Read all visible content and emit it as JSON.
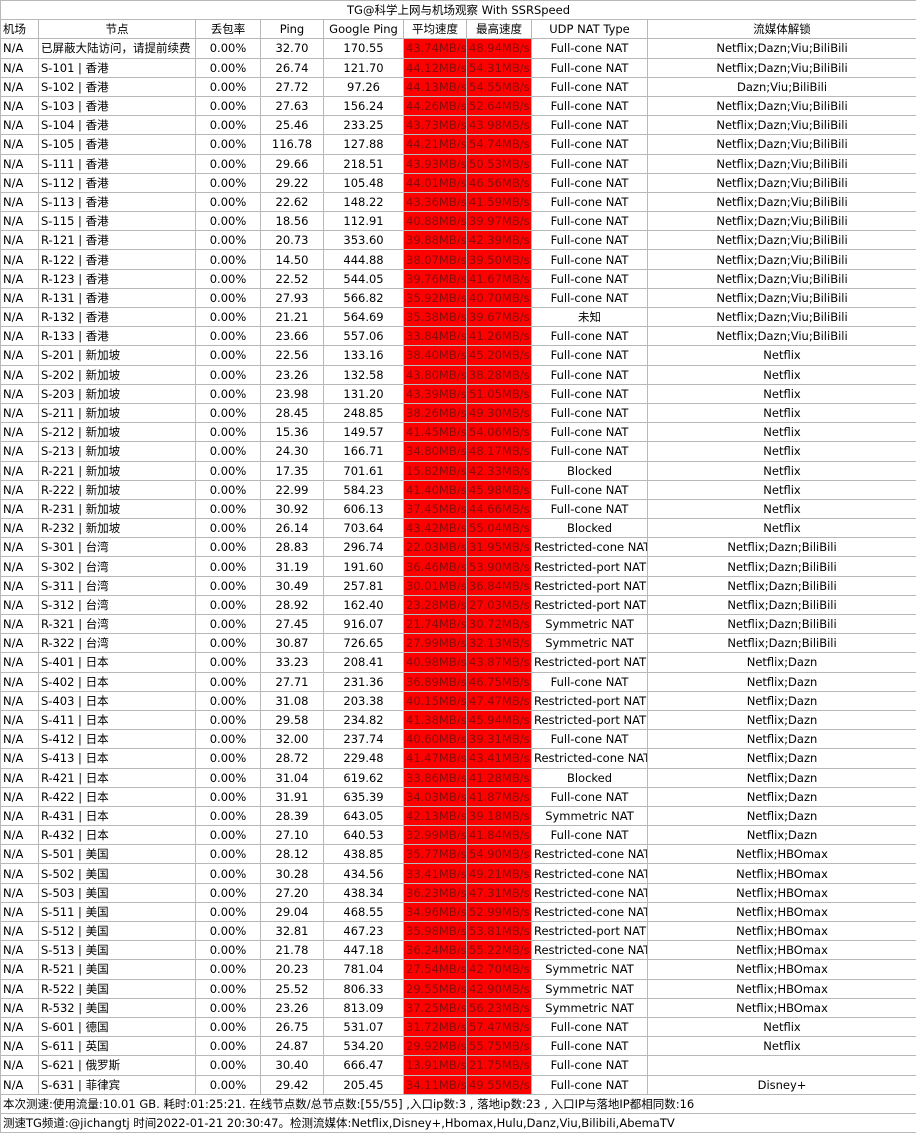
{
  "title": "TG@科学上网与机场观察 With SSRSpeed",
  "colors": {
    "speed_bg": "#ff0000",
    "speed_text": "#8a0a0a",
    "grid": "#b8b8b8"
  },
  "headers": [
    "机场",
    "节点",
    "丢包率",
    "Ping",
    "Google Ping",
    "平均速度",
    "最高速度",
    "UDP NAT Type",
    "流媒体解锁"
  ],
  "rows": [
    [
      "N/A",
      "已屏蔽大陆访问，请提前续费",
      "0.00%",
      "32.70",
      "170.55",
      "43.74MB/s",
      "48.94MB/s",
      "Full-cone NAT",
      "Netflix;Dazn;Viu;BiliBili"
    ],
    [
      "N/A",
      "S-101 | 香港",
      "0.00%",
      "26.74",
      "121.70",
      "44.12MB/s",
      "54.31MB/s",
      "Full-cone NAT",
      "Netflix;Dazn;Viu;BiliBili"
    ],
    [
      "N/A",
      "S-102 | 香港",
      "0.00%",
      "27.72",
      "97.26",
      "44.13MB/s",
      "54.55MB/s",
      "Full-cone NAT",
      "Dazn;Viu;BiliBili"
    ],
    [
      "N/A",
      "S-103 | 香港",
      "0.00%",
      "27.63",
      "156.24",
      "44.26MB/s",
      "52.64MB/s",
      "Full-cone NAT",
      "Netflix;Dazn;Viu;BiliBili"
    ],
    [
      "N/A",
      "S-104 | 香港",
      "0.00%",
      "25.46",
      "233.25",
      "43.73MB/s",
      "43.98MB/s",
      "Full-cone NAT",
      "Netflix;Dazn;Viu;BiliBili"
    ],
    [
      "N/A",
      "S-105 | 香港",
      "0.00%",
      "116.78",
      "127.88",
      "44.21MB/s",
      "54.74MB/s",
      "Full-cone NAT",
      "Netflix;Dazn;Viu;BiliBili"
    ],
    [
      "N/A",
      "S-111 | 香港",
      "0.00%",
      "29.66",
      "218.51",
      "43.93MB/s",
      "50.53MB/s",
      "Full-cone NAT",
      "Netflix;Dazn;Viu;BiliBili"
    ],
    [
      "N/A",
      "S-112 | 香港",
      "0.00%",
      "29.22",
      "105.48",
      "44.01MB/s",
      "46.56MB/s",
      "Full-cone NAT",
      "Netflix;Dazn;Viu;BiliBili"
    ],
    [
      "N/A",
      "S-113 | 香港",
      "0.00%",
      "22.62",
      "148.22",
      "43.36MB/s",
      "41.59MB/s",
      "Full-cone NAT",
      "Netflix;Dazn;Viu;BiliBili"
    ],
    [
      "N/A",
      "S-115 | 香港",
      "0.00%",
      "18.56",
      "112.91",
      "40.88MB/s",
      "39.97MB/s",
      "Full-cone NAT",
      "Netflix;Dazn;Viu;BiliBili"
    ],
    [
      "N/A",
      "R-121 | 香港",
      "0.00%",
      "20.73",
      "353.60",
      "39.88MB/s",
      "42.39MB/s",
      "Full-cone NAT",
      "Netflix;Dazn;Viu;BiliBili"
    ],
    [
      "N/A",
      "R-122 | 香港",
      "0.00%",
      "14.50",
      "444.88",
      "38.07MB/s",
      "39.50MB/s",
      "Full-cone NAT",
      "Netflix;Dazn;Viu;BiliBili"
    ],
    [
      "N/A",
      "R-123 | 香港",
      "0.00%",
      "22.52",
      "544.05",
      "39.76MB/s",
      "41.67MB/s",
      "Full-cone NAT",
      "Netflix;Dazn;Viu;BiliBili"
    ],
    [
      "N/A",
      "R-131 | 香港",
      "0.00%",
      "27.93",
      "566.82",
      "35.92MB/s",
      "40.70MB/s",
      "Full-cone NAT",
      "Netflix;Dazn;Viu;BiliBili"
    ],
    [
      "N/A",
      "R-132 | 香港",
      "0.00%",
      "21.21",
      "564.69",
      "35.38MB/s",
      "39.67MB/s",
      "未知",
      "Netflix;Dazn;Viu;BiliBili"
    ],
    [
      "N/A",
      "R-133 | 香港",
      "0.00%",
      "23.66",
      "557.06",
      "33.84MB/s",
      "41.26MB/s",
      "Full-cone NAT",
      "Netflix;Dazn;Viu;BiliBili"
    ],
    [
      "N/A",
      "S-201 | 新加坡",
      "0.00%",
      "22.56",
      "133.16",
      "38.40MB/s",
      "45.20MB/s",
      "Full-cone NAT",
      "Netflix"
    ],
    [
      "N/A",
      "S-202 | 新加坡",
      "0.00%",
      "23.26",
      "132.58",
      "43.80MB/s",
      "38.28MB/s",
      "Full-cone NAT",
      "Netflix"
    ],
    [
      "N/A",
      "S-203 | 新加坡",
      "0.00%",
      "23.98",
      "131.20",
      "43.39MB/s",
      "51.05MB/s",
      "Full-cone NAT",
      "Netflix"
    ],
    [
      "N/A",
      "S-211 | 新加坡",
      "0.00%",
      "28.45",
      "248.85",
      "38.26MB/s",
      "49.30MB/s",
      "Full-cone NAT",
      "Netflix"
    ],
    [
      "N/A",
      "S-212 | 新加坡",
      "0.00%",
      "15.36",
      "149.57",
      "41.45MB/s",
      "54.06MB/s",
      "Full-cone NAT",
      "Netflix"
    ],
    [
      "N/A",
      "S-213 | 新加坡",
      "0.00%",
      "24.30",
      "166.71",
      "34.80MB/s",
      "48.17MB/s",
      "Full-cone NAT",
      "Netflix"
    ],
    [
      "N/A",
      "R-221 | 新加坡",
      "0.00%",
      "17.35",
      "701.61",
      "15.82MB/s",
      "42.33MB/s",
      "Blocked",
      "Netflix"
    ],
    [
      "N/A",
      "R-222 | 新加坡",
      "0.00%",
      "22.99",
      "584.23",
      "41.40MB/s",
      "45.98MB/s",
      "Full-cone NAT",
      "Netflix"
    ],
    [
      "N/A",
      "R-231 | 新加坡",
      "0.00%",
      "30.92",
      "606.13",
      "37.45MB/s",
      "44.66MB/s",
      "Full-cone NAT",
      "Netflix"
    ],
    [
      "N/A",
      "R-232 | 新加坡",
      "0.00%",
      "26.14",
      "703.64",
      "43.42MB/s",
      "55.04MB/s",
      "Blocked",
      "Netflix"
    ],
    [
      "N/A",
      "S-301 | 台湾",
      "0.00%",
      "28.83",
      "296.74",
      "22.03MB/s",
      "31.95MB/s",
      "Restricted-cone NAT",
      "Netflix;Dazn;BiliBili"
    ],
    [
      "N/A",
      "S-302 | 台湾",
      "0.00%",
      "31.19",
      "191.60",
      "36.46MB/s",
      "53.90MB/s",
      "Restricted-port NAT",
      "Netflix;Dazn;BiliBili"
    ],
    [
      "N/A",
      "S-311 | 台湾",
      "0.00%",
      "30.49",
      "257.81",
      "30.01MB/s",
      "36.84MB/s",
      "Restricted-port NAT",
      "Netflix;Dazn;BiliBili"
    ],
    [
      "N/A",
      "S-312 | 台湾",
      "0.00%",
      "28.92",
      "162.40",
      "23.28MB/s",
      "27.03MB/s",
      "Restricted-port NAT",
      "Netflix;Dazn;BiliBili"
    ],
    [
      "N/A",
      "R-321 | 台湾",
      "0.00%",
      "27.45",
      "916.07",
      "21.74MB/s",
      "30.72MB/s",
      "Symmetric NAT",
      "Netflix;Dazn;BiliBili"
    ],
    [
      "N/A",
      "R-322 | 台湾",
      "0.00%",
      "30.87",
      "726.65",
      "27.99MB/s",
      "32.13MB/s",
      "Symmetric NAT",
      "Netflix;Dazn;BiliBili"
    ],
    [
      "N/A",
      "S-401 | 日本",
      "0.00%",
      "33.23",
      "208.41",
      "40.98MB/s",
      "43.87MB/s",
      "Restricted-port NAT",
      "Netflix;Dazn"
    ],
    [
      "N/A",
      "S-402 | 日本",
      "0.00%",
      "27.71",
      "231.36",
      "36.89MB/s",
      "46.75MB/s",
      "Full-cone NAT",
      "Netflix;Dazn"
    ],
    [
      "N/A",
      "S-403 | 日本",
      "0.00%",
      "31.08",
      "203.38",
      "40.15MB/s",
      "47.47MB/s",
      "Restricted-port NAT",
      "Netflix;Dazn"
    ],
    [
      "N/A",
      "S-411 | 日本",
      "0.00%",
      "29.58",
      "234.82",
      "41.38MB/s",
      "45.94MB/s",
      "Restricted-port NAT",
      "Netflix;Dazn"
    ],
    [
      "N/A",
      "S-412 | 日本",
      "0.00%",
      "32.00",
      "237.74",
      "40.60MB/s",
      "39.31MB/s",
      "Full-cone NAT",
      "Netflix;Dazn"
    ],
    [
      "N/A",
      "S-413 | 日本",
      "0.00%",
      "28.72",
      "229.48",
      "41.47MB/s",
      "43.41MB/s",
      "Restricted-cone NAT",
      "Netflix;Dazn"
    ],
    [
      "N/A",
      "R-421 | 日本",
      "0.00%",
      "31.04",
      "619.62",
      "33.86MB/s",
      "41.28MB/s",
      "Blocked",
      "Netflix;Dazn"
    ],
    [
      "N/A",
      "R-422 | 日本",
      "0.00%",
      "31.91",
      "635.39",
      "34.03MB/s",
      "41.87MB/s",
      "Full-cone NAT",
      "Netflix;Dazn"
    ],
    [
      "N/A",
      "R-431 | 日本",
      "0.00%",
      "28.39",
      "643.05",
      "42.13MB/s",
      "39.18MB/s",
      "Symmetric NAT",
      "Netflix;Dazn"
    ],
    [
      "N/A",
      "R-432 | 日本",
      "0.00%",
      "27.10",
      "640.53",
      "32.99MB/s",
      "41.84MB/s",
      "Full-cone NAT",
      "Netflix;Dazn"
    ],
    [
      "N/A",
      "S-501 | 美国",
      "0.00%",
      "28.12",
      "438.85",
      "35.77MB/s",
      "54.90MB/s",
      "Restricted-cone NAT",
      "Netflix;HBOmax"
    ],
    [
      "N/A",
      "S-502 | 美国",
      "0.00%",
      "30.28",
      "434.56",
      "33.41MB/s",
      "49.21MB/s",
      "Restricted-cone NAT",
      "Netflix;HBOmax"
    ],
    [
      "N/A",
      "S-503 | 美国",
      "0.00%",
      "27.20",
      "438.34",
      "36.23MB/s",
      "47.31MB/s",
      "Restricted-cone NAT",
      "Netflix;HBOmax"
    ],
    [
      "N/A",
      "S-511 | 美国",
      "0.00%",
      "29.04",
      "468.55",
      "34.96MB/s",
      "52.99MB/s",
      "Restricted-cone NAT",
      "Netflix;HBOmax"
    ],
    [
      "N/A",
      "S-512 | 美国",
      "0.00%",
      "32.81",
      "467.23",
      "35.98MB/s",
      "53.81MB/s",
      "Restricted-port NAT",
      "Netflix;HBOmax"
    ],
    [
      "N/A",
      "S-513 | 美国",
      "0.00%",
      "21.78",
      "447.18",
      "36.24MB/s",
      "55.22MB/s",
      "Restricted-cone NAT",
      "Netflix;HBOmax"
    ],
    [
      "N/A",
      "R-521 | 美国",
      "0.00%",
      "20.23",
      "781.04",
      "27.54MB/s",
      "42.70MB/s",
      "Symmetric NAT",
      "Netflix;HBOmax"
    ],
    [
      "N/A",
      "R-522 | 美国",
      "0.00%",
      "25.52",
      "806.33",
      "29.55MB/s",
      "42.90MB/s",
      "Symmetric NAT",
      "Netflix;HBOmax"
    ],
    [
      "N/A",
      "R-532 | 美国",
      "0.00%",
      "23.26",
      "813.09",
      "37.25MB/s",
      "56.23MB/s",
      "Symmetric NAT",
      "Netflix;HBOmax"
    ],
    [
      "N/A",
      "S-601 | 德国",
      "0.00%",
      "26.75",
      "531.07",
      "31.72MB/s",
      "57.47MB/s",
      "Full-cone NAT",
      "Netflix"
    ],
    [
      "N/A",
      "S-611 | 英国",
      "0.00%",
      "24.87",
      "534.20",
      "29.92MB/s",
      "55.75MB/s",
      "Full-cone NAT",
      "Netflix"
    ],
    [
      "N/A",
      "S-621 | 俄罗斯",
      "0.00%",
      "30.40",
      "666.47",
      "13.91MB/s",
      "21.75MB/s",
      "Full-cone NAT",
      ""
    ],
    [
      "N/A",
      "S-631 | 菲律宾",
      "0.00%",
      "29.42",
      "205.45",
      "34.11MB/s",
      "49.55MB/s",
      "Full-cone NAT",
      "Disney+"
    ]
  ],
  "footer": [
    "本次测速:使用流量:10.01 GB. 耗时:01:25:21. 在线节点数/总节点数:[55/55] ,入口ip数:3 , 落地ip数:23 , 入口IP与落地IP都相同数:16",
    "测速TG频道:@jichangtj 时间2022-01-21 20:30:47。检测流媒体:Netflix,Disney+,Hbomax,Hulu,Danz,Viu,Bilibili,AbemaTV"
  ]
}
